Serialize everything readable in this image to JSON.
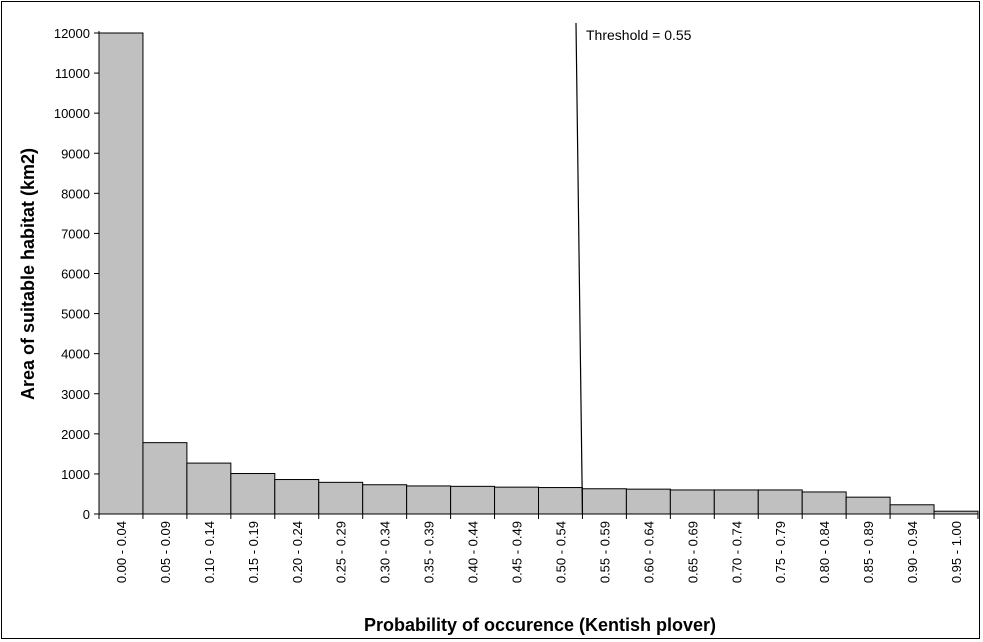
{
  "chart_data": {
    "type": "bar",
    "title": "",
    "xlabel": "Probability of occurence (Kentish plover)",
    "ylabel": "Area of suitable habitat (km2)",
    "ylim": [
      0,
      12000
    ],
    "yticks": [
      0,
      1000,
      2000,
      3000,
      4000,
      5000,
      6000,
      7000,
      8000,
      9000,
      10000,
      11000,
      12000
    ],
    "categories": [
      "0.00 - 0.04",
      "0.05 - 0.09",
      "0.10 - 0.14",
      "0.15 - 0.19",
      "0.20 - 0.24",
      "0.25 - 0.29",
      "0.30 - 0.34",
      "0.35 - 0.39",
      "0.40 - 0.44",
      "0.45 - 0.49",
      "0.50 - 0.54",
      "0.55 - 0.59",
      "0.60 - 0.64",
      "0.65 - 0.69",
      "0.70 - 0.74",
      "0.75 - 0.79",
      "0.80 - 0.84",
      "0.85 - 0.89",
      "0.90 - 0.94",
      "0.95 - 1.00"
    ],
    "values": [
      12000,
      1780,
      1270,
      1010,
      860,
      790,
      730,
      700,
      690,
      670,
      660,
      630,
      620,
      600,
      600,
      600,
      550,
      420,
      230,
      70
    ],
    "bar_color": "#c0c0c0",
    "grid": false,
    "legend": "none",
    "annotation": {
      "label": "Threshold = 0.55",
      "x_category_index": 11
    }
  }
}
